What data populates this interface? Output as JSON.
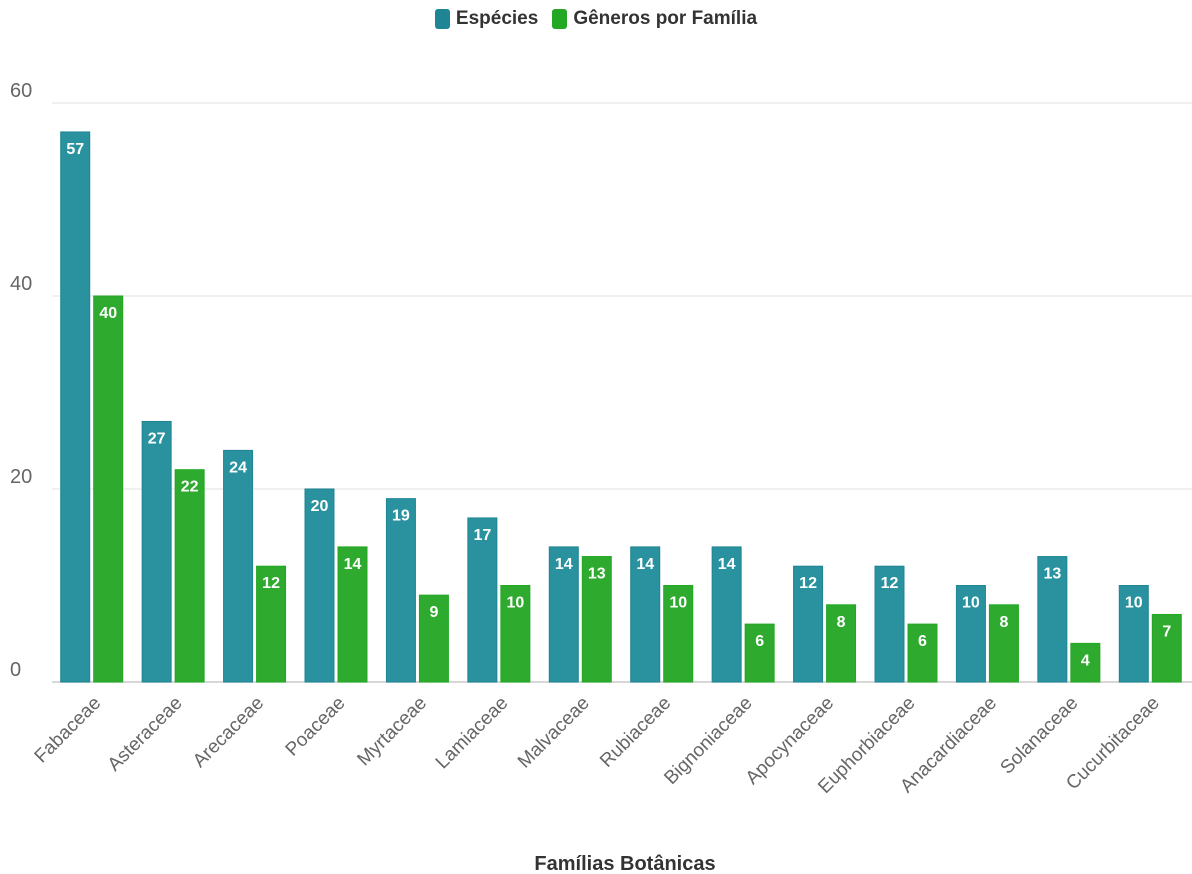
{
  "chart_data": {
    "type": "bar",
    "xlabel": "Famílias Botânicas",
    "ylabel": "",
    "ylim": [
      0,
      60
    ],
    "yticks": [
      0,
      20,
      40,
      60
    ],
    "grid": true,
    "legend_position": "top",
    "categories": [
      "Fabaceae",
      "Asteraceae",
      "Arecaceae",
      "Poaceae",
      "Myrtaceae",
      "Lamiaceae",
      "Malvaceae",
      "Rubiaceae",
      "Bignoniaceae",
      "Apocynaceae",
      "Euphorbiaceae",
      "Anacardiaceae",
      "Solanaceae",
      "Cucurbitaceae"
    ],
    "series": [
      {
        "name": "Espécies",
        "color": "#2a929f",
        "values": [
          57,
          27,
          24,
          20,
          19,
          17,
          14,
          14,
          14,
          12,
          12,
          10,
          13,
          10
        ]
      },
      {
        "name": "Gêneros por Família",
        "color": "#2eaa2e",
        "values": [
          40,
          22,
          12,
          14,
          9,
          10,
          13,
          10,
          6,
          8,
          6,
          8,
          4,
          7
        ]
      }
    ]
  }
}
